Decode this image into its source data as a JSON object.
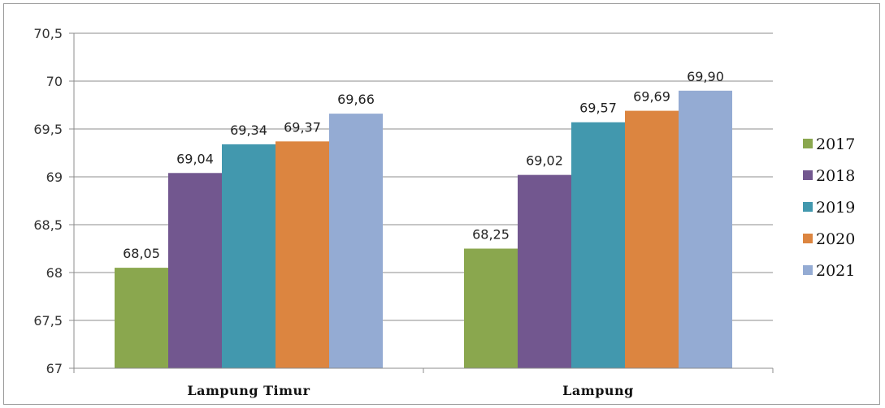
{
  "chart_data": {
    "type": "bar",
    "categories": [
      "Lampung Timur",
      "Lampung"
    ],
    "series": [
      {
        "name": "2017",
        "color": "#8aa74e",
        "values": [
          68.05,
          68.25
        ],
        "labels": [
          "68,05",
          "68,25"
        ]
      },
      {
        "name": "2018",
        "color": "#72578f",
        "values": [
          69.04,
          69.02
        ],
        "labels": [
          "69,04",
          "69,02"
        ]
      },
      {
        "name": "2019",
        "color": "#4298ae",
        "values": [
          69.34,
          69.57
        ],
        "labels": [
          "69,34",
          "69,57"
        ]
      },
      {
        "name": "2020",
        "color": "#dc8540",
        "values": [
          69.37,
          69.69
        ],
        "labels": [
          "69,37",
          "69,69"
        ]
      },
      {
        "name": "2021",
        "color": "#94abd3",
        "values": [
          69.66,
          69.9
        ],
        "labels": [
          "69,66",
          "69,90"
        ]
      }
    ],
    "ylim": [
      67,
      70.5
    ],
    "yticks": [
      67,
      67.5,
      68,
      68.5,
      69,
      69.5,
      70,
      70.5
    ],
    "ytick_labels": [
      "67",
      "67,5",
      "68",
      "68,5",
      "69",
      "69,5",
      "70",
      "70,5"
    ],
    "grid": true,
    "legend_position": "right"
  }
}
